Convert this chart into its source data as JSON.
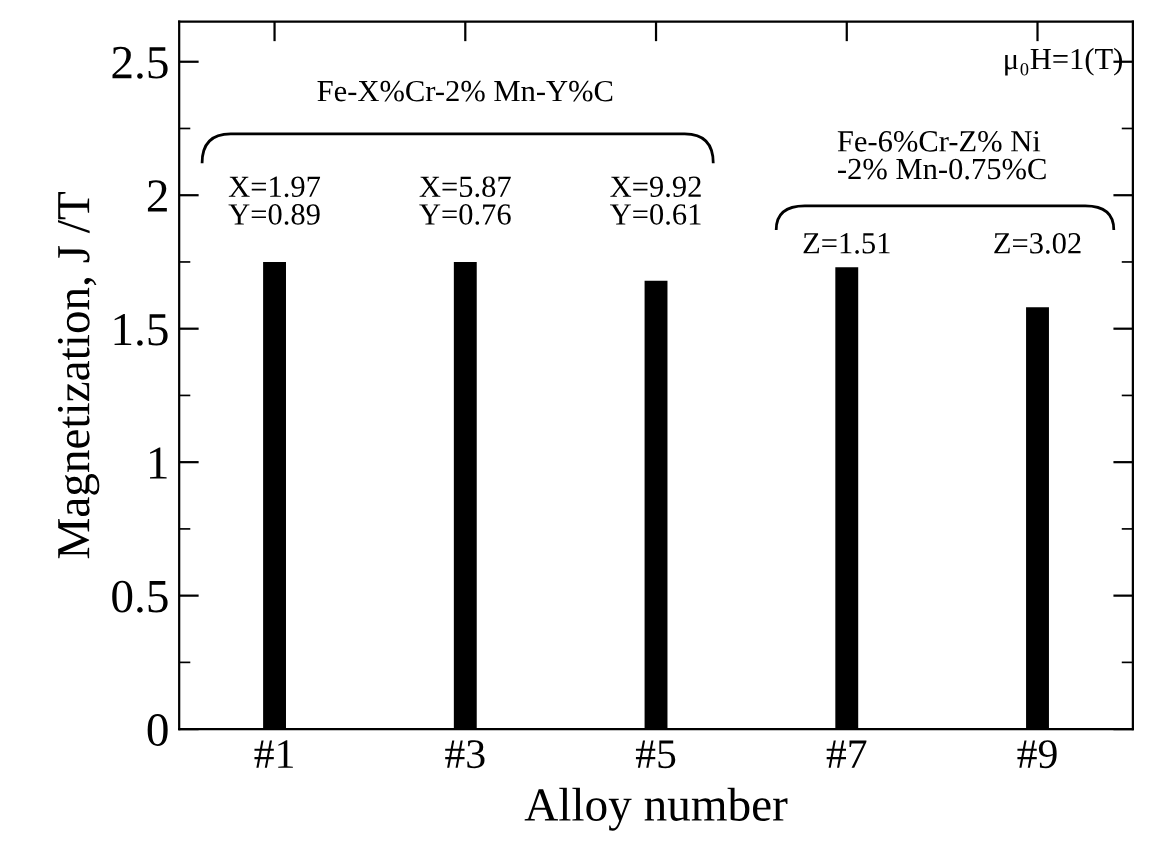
{
  "chart_data": {
    "type": "bar",
    "xlabel": "Alloy number",
    "ylabel": "Magnetization, J /T",
    "categories": [
      "#1",
      "#3",
      "#5",
      "#7",
      "#9"
    ],
    "values": [
      1.75,
      1.75,
      1.68,
      1.73,
      1.58
    ],
    "color": "#000000",
    "ylim": [
      0,
      2.65
    ],
    "yticks": [
      0,
      0.5,
      1.0,
      1.5,
      2.0,
      2.5
    ],
    "grid": false,
    "legend": false,
    "annotations": [
      "Fe-X%Cr-2% Mn-Y%C",
      "X=1.97\nY=0.89",
      "X=5.87\nY=0.76",
      "X=9.92\nY=0.61",
      "Fe-6%Cr-Z% Ni\n-2% Mn-0.75%C",
      "Z=1.51",
      "Z=3.02",
      "μ₀H=1(T)"
    ]
  }
}
